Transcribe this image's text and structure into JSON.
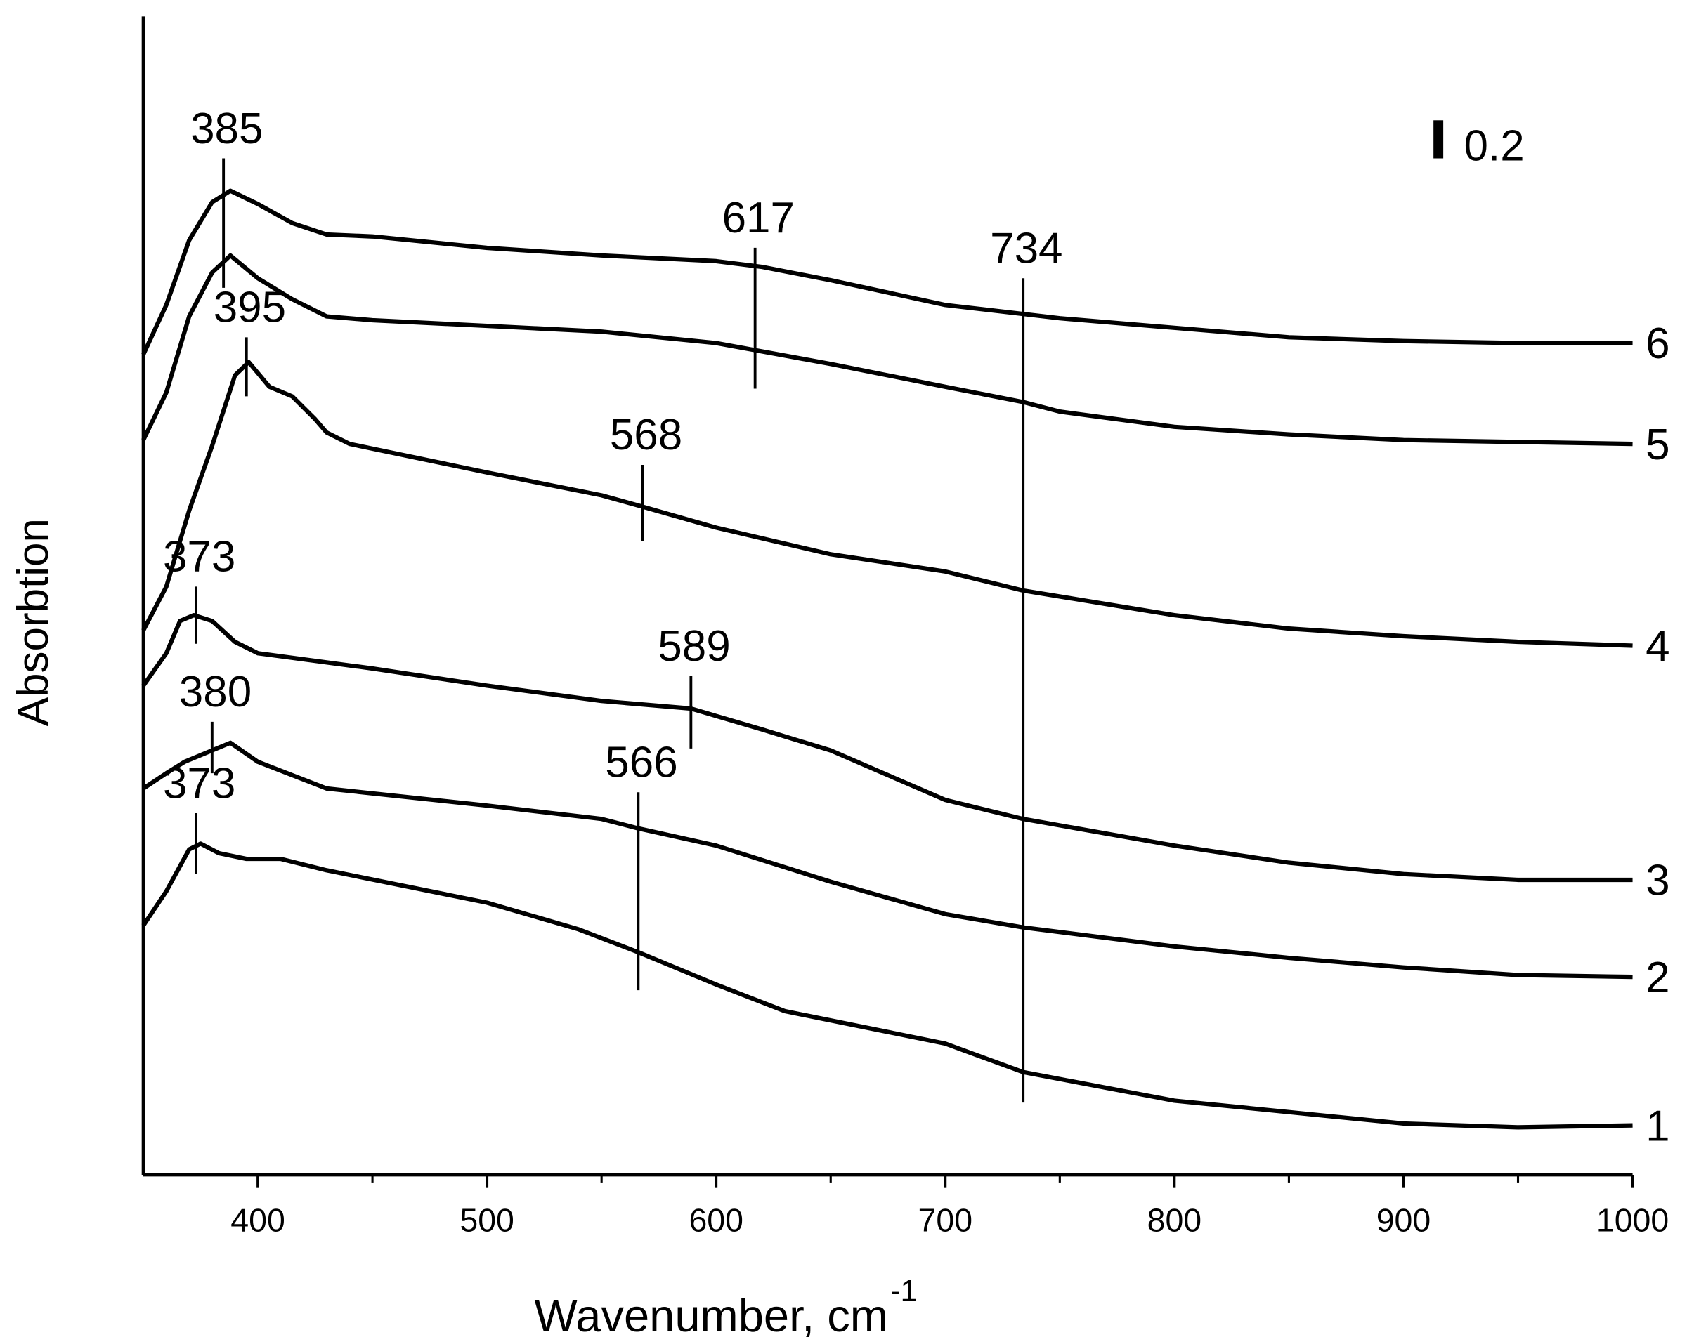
{
  "chart_data": {
    "type": "line",
    "xlabel": "Wavenumber, cm",
    "xlabel_sup": "-1",
    "ylabel": "Absorbtion",
    "xlim": [
      350,
      1000
    ],
    "ylim": [
      0,
      6
    ],
    "xticks": [
      400,
      500,
      600,
      700,
      800,
      900,
      1000
    ],
    "xminor_ticks": [
      450,
      550,
      650,
      750,
      850,
      950
    ],
    "color": "#000000",
    "series": [
      {
        "name": "1",
        "x": [
          350,
          360,
          370,
          375,
          383,
          395,
          410,
          430,
          500,
          540,
          566,
          600,
          630,
          700,
          734,
          800,
          850,
          900,
          950,
          1000
        ],
        "values": [
          1.31,
          1.49,
          1.71,
          1.74,
          1.69,
          1.66,
          1.66,
          1.6,
          1.43,
          1.29,
          1.17,
          1.0,
          0.86,
          0.69,
          0.54,
          0.39,
          0.33,
          0.27,
          0.25,
          0.26
        ]
      },
      {
        "name": "2",
        "x": [
          350,
          360,
          368,
          380,
          388,
          400,
          430,
          500,
          550,
          566,
          600,
          650,
          700,
          734,
          800,
          850,
          900,
          950,
          1000
        ],
        "values": [
          2.03,
          2.11,
          2.17,
          2.23,
          2.27,
          2.17,
          2.03,
          1.94,
          1.87,
          1.82,
          1.73,
          1.54,
          1.37,
          1.3,
          1.2,
          1.14,
          1.09,
          1.05,
          1.04
        ]
      },
      {
        "name": "3",
        "x": [
          350,
          360,
          366,
          372,
          380,
          390,
          400,
          450,
          500,
          550,
          589,
          620,
          650,
          700,
          734,
          800,
          850,
          900,
          950,
          1000
        ],
        "values": [
          2.57,
          2.74,
          2.91,
          2.94,
          2.91,
          2.8,
          2.74,
          2.66,
          2.57,
          2.49,
          2.45,
          2.34,
          2.23,
          1.97,
          1.87,
          1.73,
          1.64,
          1.58,
          1.55,
          1.55
        ]
      },
      {
        "name": "4",
        "x": [
          350,
          360,
          370,
          380,
          390,
          396,
          405,
          415,
          425,
          430,
          440,
          500,
          550,
          568,
          600,
          650,
          700,
          734,
          800,
          850,
          900,
          950,
          1000
        ],
        "values": [
          2.86,
          3.09,
          3.49,
          3.83,
          4.2,
          4.27,
          4.14,
          4.09,
          3.97,
          3.9,
          3.84,
          3.69,
          3.57,
          3.51,
          3.4,
          3.26,
          3.17,
          3.07,
          2.94,
          2.87,
          2.83,
          2.8,
          2.78
        ]
      },
      {
        "name": "5",
        "x": [
          350,
          360,
          370,
          380,
          388,
          400,
          415,
          430,
          450,
          500,
          550,
          600,
          650,
          700,
          734,
          750,
          800,
          850,
          900,
          1000
        ],
        "values": [
          3.86,
          4.11,
          4.51,
          4.74,
          4.83,
          4.71,
          4.6,
          4.51,
          4.49,
          4.46,
          4.43,
          4.37,
          4.26,
          4.14,
          4.06,
          4.01,
          3.93,
          3.89,
          3.86,
          3.84
        ]
      },
      {
        "name": "6",
        "x": [
          350,
          360,
          370,
          380,
          388,
          400,
          415,
          430,
          450,
          500,
          550,
          600,
          620,
          650,
          700,
          750,
          800,
          850,
          900,
          950,
          1000
        ],
        "values": [
          4.31,
          4.57,
          4.91,
          5.11,
          5.17,
          5.1,
          5.0,
          4.94,
          4.93,
          4.87,
          4.83,
          4.8,
          4.77,
          4.7,
          4.57,
          4.5,
          4.45,
          4.4,
          4.38,
          4.37,
          4.37
        ]
      }
    ],
    "annotations": [
      {
        "x": 385,
        "y": [
          4.66,
          5.34
        ]
      },
      {
        "x": 617,
        "y": [
          4.13,
          4.87
        ]
      },
      {
        "x": 734,
        "y": [
          0.38,
          4.71
        ]
      },
      {
        "x": 395,
        "y": [
          4.09,
          4.4
        ]
      },
      {
        "x": 568,
        "y": [
          3.33,
          3.73
        ]
      },
      {
        "x": 373,
        "y": [
          2.79,
          3.09
        ]
      },
      {
        "x": 589,
        "y": [
          2.24,
          2.62
        ]
      },
      {
        "x": 380,
        "y": [
          2.11,
          2.38
        ]
      },
      {
        "x": 566,
        "y": [
          0.97,
          2.01
        ]
      },
      {
        "x": 373,
        "y": [
          1.58,
          1.9
        ]
      }
    ],
    "scale_bar": {
      "x": 915,
      "y": 5.34,
      "value": 0.2
    }
  }
}
